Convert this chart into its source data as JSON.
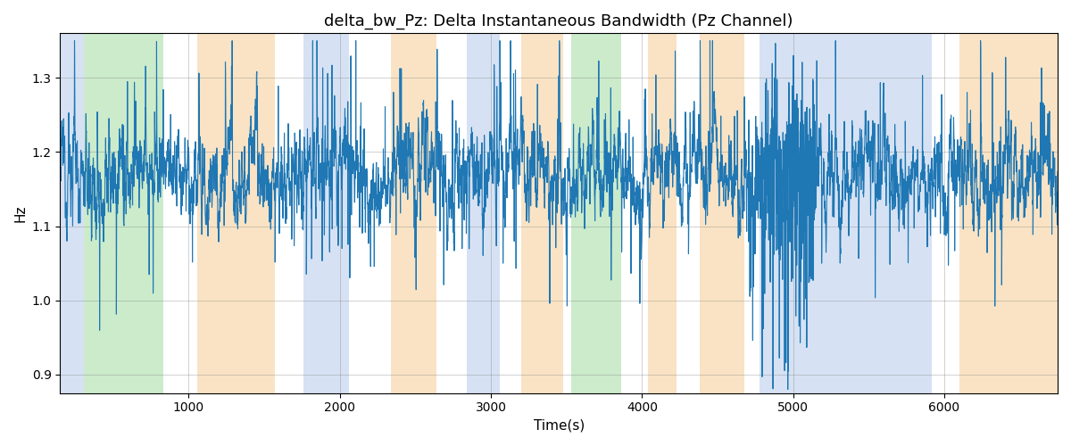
{
  "title": "delta_bw_Pz: Delta Instantaneous Bandwidth (Pz Channel)",
  "xlabel": "Time(s)",
  "ylabel": "Hz",
  "xlim": [
    150,
    6750
  ],
  "ylim": [
    0.875,
    1.36
  ],
  "yticks": [
    0.9,
    1.0,
    1.1,
    1.2,
    1.3
  ],
  "xticks": [
    1000,
    2000,
    3000,
    4000,
    5000,
    6000
  ],
  "background_color": "#ffffff",
  "line_color": "#1f77b4",
  "line_width": 0.8,
  "title_fontsize": 13,
  "bands": [
    {
      "xmin": 150,
      "xmax": 310,
      "color": "#aec6e8",
      "alpha": 0.5
    },
    {
      "xmin": 310,
      "xmax": 830,
      "color": "#98d898",
      "alpha": 0.5
    },
    {
      "xmin": 1060,
      "xmax": 1570,
      "color": "#f5c98a",
      "alpha": 0.5
    },
    {
      "xmin": 1760,
      "xmax": 2060,
      "color": "#aec6e8",
      "alpha": 0.5
    },
    {
      "xmin": 2340,
      "xmax": 2640,
      "color": "#f5c98a",
      "alpha": 0.5
    },
    {
      "xmin": 2840,
      "xmax": 3060,
      "color": "#aec6e8",
      "alpha": 0.5
    },
    {
      "xmin": 3200,
      "xmax": 3480,
      "color": "#f5c98a",
      "alpha": 0.5
    },
    {
      "xmin": 3530,
      "xmax": 3860,
      "color": "#98d898",
      "alpha": 0.5
    },
    {
      "xmin": 4040,
      "xmax": 4230,
      "color": "#f5c98a",
      "alpha": 0.5
    },
    {
      "xmin": 4380,
      "xmax": 4680,
      "color": "#f5c98a",
      "alpha": 0.5
    },
    {
      "xmin": 4780,
      "xmax": 5920,
      "color": "#aec6e8",
      "alpha": 0.5
    },
    {
      "xmin": 6100,
      "xmax": 6750,
      "color": "#f5c98a",
      "alpha": 0.5
    }
  ]
}
